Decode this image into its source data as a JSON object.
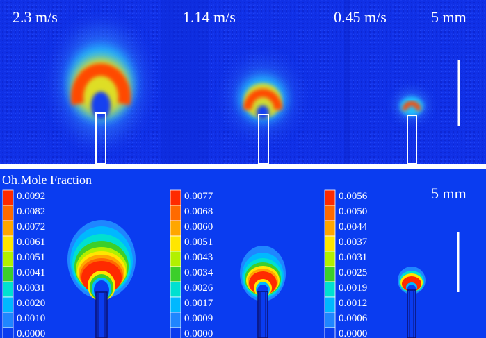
{
  "experiment": {
    "velocities": [
      "2.3 m/s",
      "1.14 m/s",
      "0.45 m/s"
    ],
    "scale_label": "5 mm"
  },
  "simulation": {
    "legend_title": "Oh.Mole Fraction",
    "scale_label": "5 mm",
    "colorbars": [
      {
        "name": "colorbar-1",
        "ticks": [
          "0.0092",
          "0.0082",
          "0.0072",
          "0.0061",
          "0.0051",
          "0.0041",
          "0.0031",
          "0.0020",
          "0.0010",
          "0.0000"
        ]
      },
      {
        "name": "colorbar-2",
        "ticks": [
          "0.0077",
          "0.0068",
          "0.0060",
          "0.0051",
          "0.0043",
          "0.0034",
          "0.0026",
          "0.0017",
          "0.0009",
          "0.0000"
        ]
      },
      {
        "name": "colorbar-3",
        "ticks": [
          "0.0056",
          "0.0050",
          "0.0044",
          "0.0037",
          "0.0031",
          "0.0025",
          "0.0019",
          "0.0012",
          "0.0006",
          "0.0000"
        ]
      }
    ],
    "colormap": [
      "#ff2a00",
      "#ff6a00",
      "#ffa600",
      "#ffe600",
      "#b2f000",
      "#3ccf2a",
      "#00e0d0",
      "#00b8ff",
      "#1f86ff",
      "#0a3cf0"
    ]
  }
}
